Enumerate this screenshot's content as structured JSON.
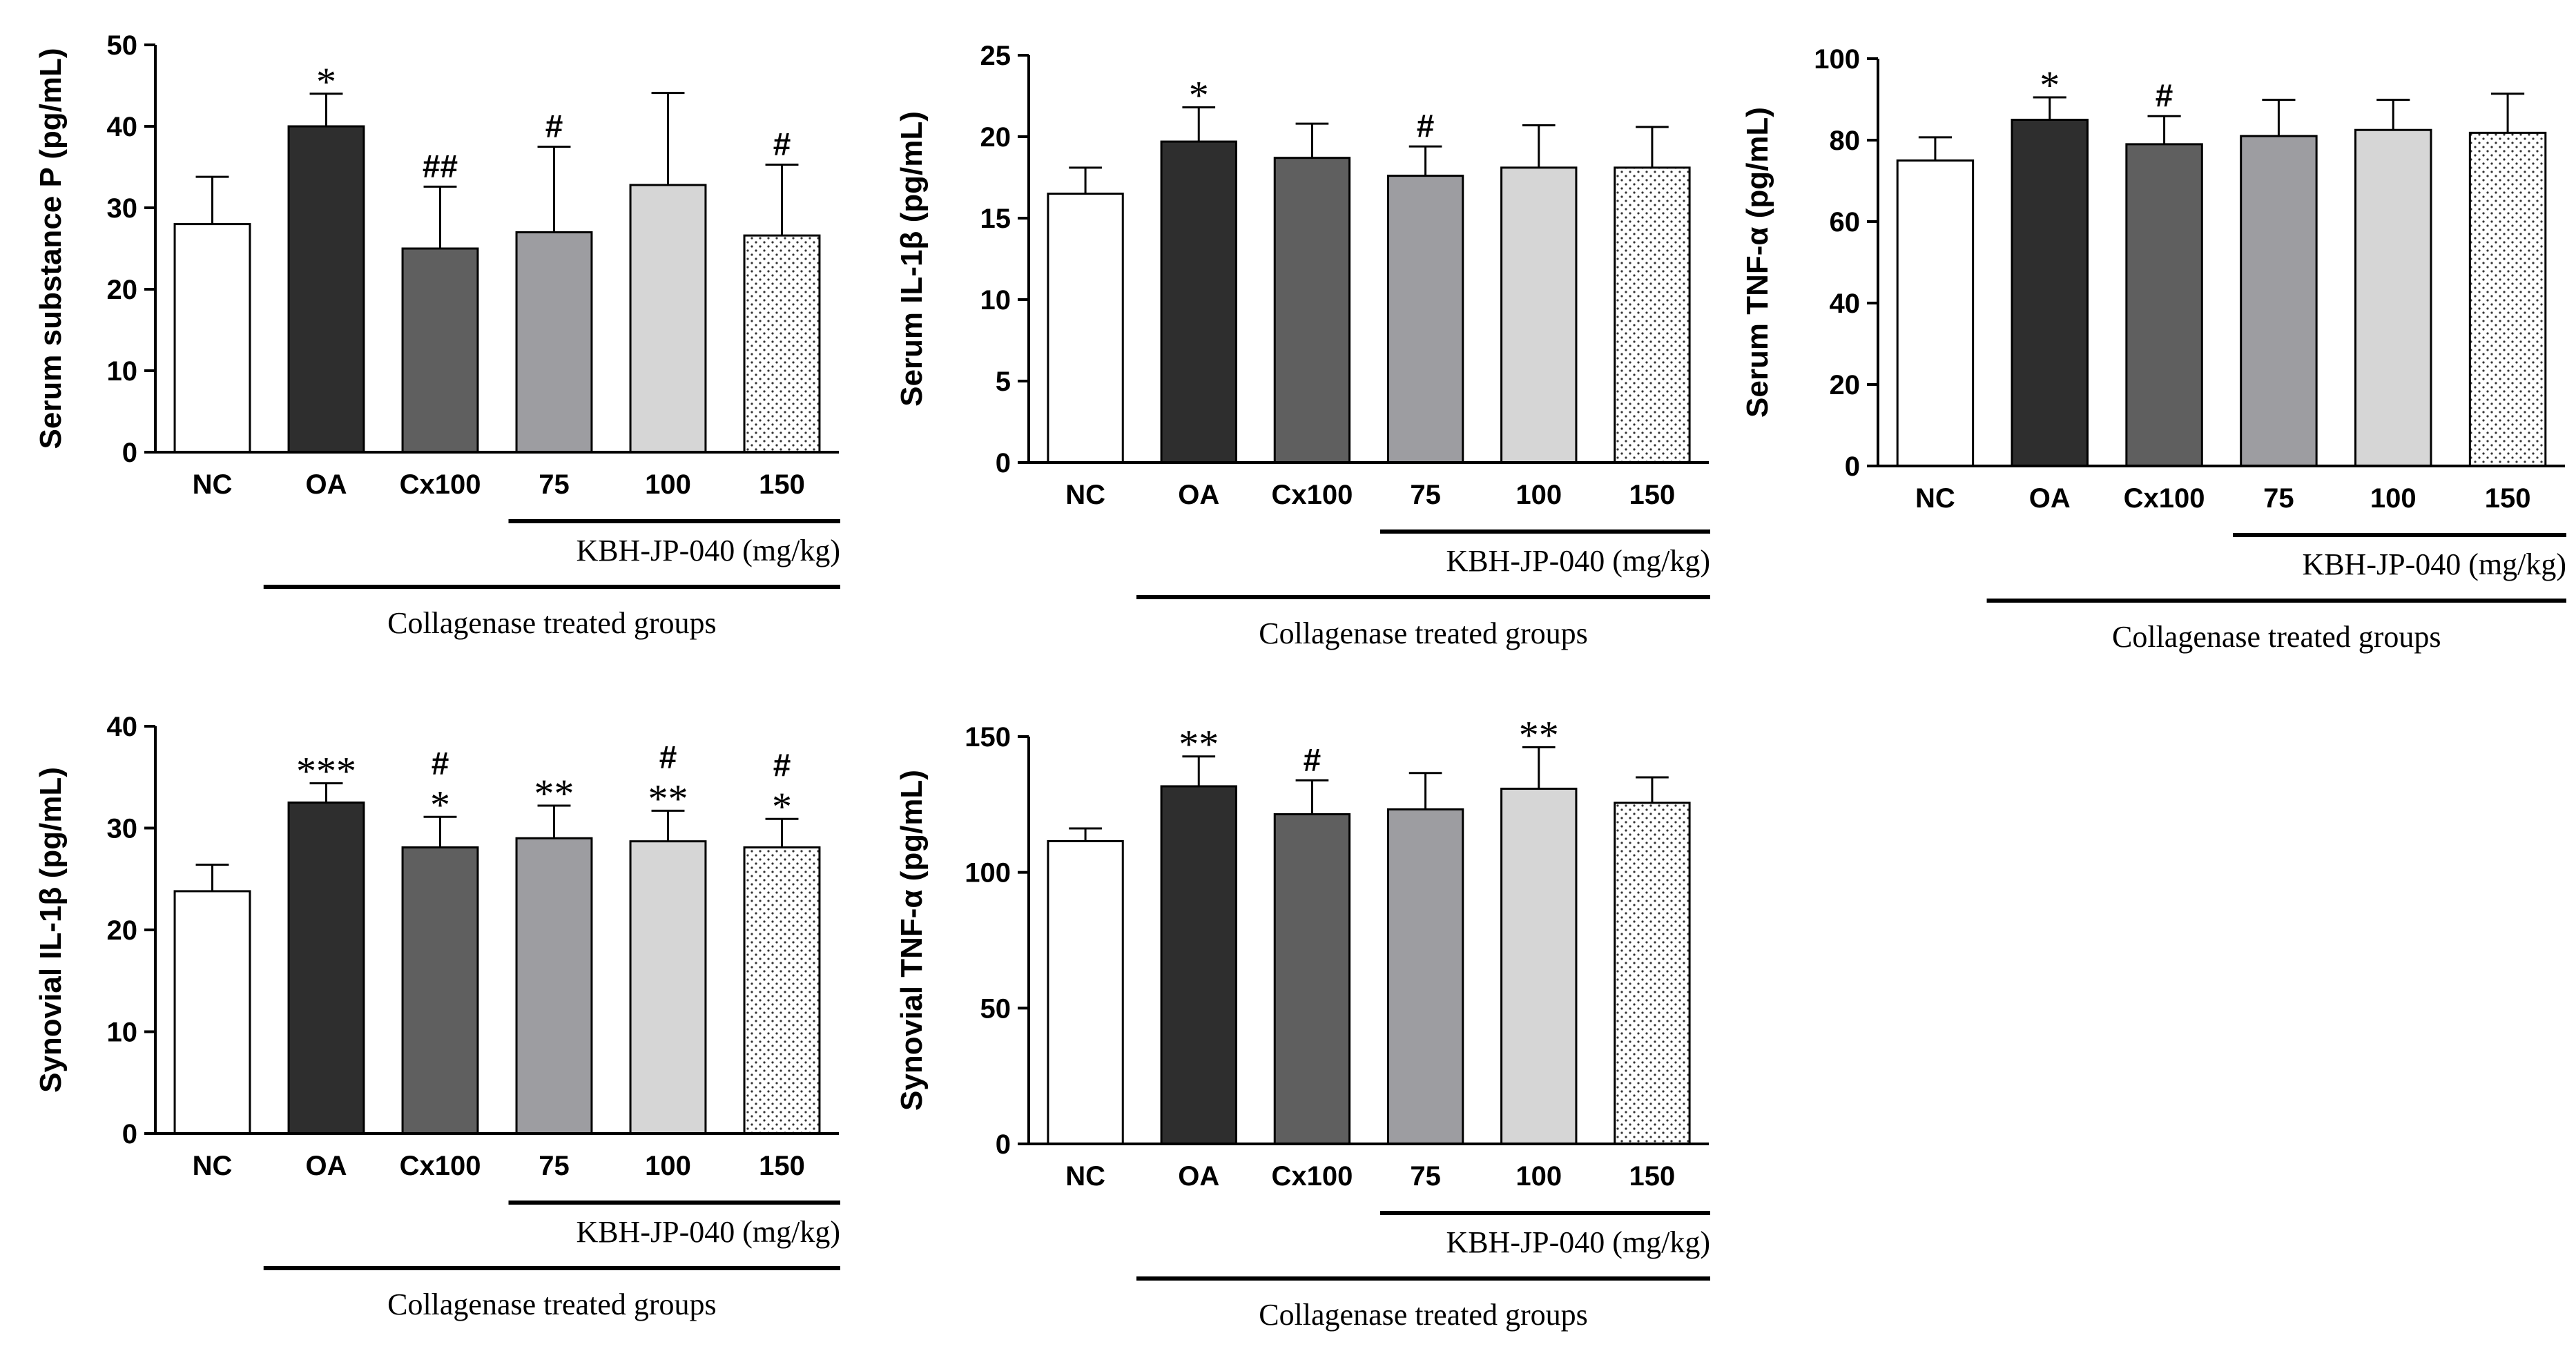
{
  "figure": {
    "categories": [
      "NC",
      "OA",
      "Cx100",
      "75",
      "100",
      "150"
    ],
    "bar_fills": [
      "#ffffff",
      "#2e2e2e",
      "#5f5f5f",
      "#9d9da1",
      "#d6d6d6",
      "dots"
    ],
    "dose_label": "KBH-JP-040 (mg/kg)",
    "group_label": "Collagenase treated groups"
  },
  "chart_data": [
    {
      "type": "bar",
      "ylabel": "Serum substance P  (pg/mL)",
      "ylim": [
        0,
        50
      ],
      "yticks": [
        0,
        10,
        20,
        30,
        40,
        50
      ],
      "categories": [
        "NC",
        "OA",
        "Cx100",
        "75",
        "100",
        "150"
      ],
      "values": [
        28,
        40,
        25,
        27,
        32.8,
        26.6
      ],
      "errors": [
        5.8,
        4,
        7.6,
        10.5,
        11.3,
        8.7
      ],
      "annotations": [
        "",
        "*",
        "##",
        "#",
        "",
        "#"
      ]
    },
    {
      "type": "bar",
      "ylabel": "Serum IL-1β  (pg/mL)",
      "ylim": [
        0,
        25
      ],
      "yticks": [
        0,
        5,
        10,
        15,
        20,
        25
      ],
      "categories": [
        "NC",
        "OA",
        "Cx100",
        "75",
        "100",
        "150"
      ],
      "values": [
        16.5,
        19.7,
        18.7,
        17.6,
        18.1,
        18.1
      ],
      "errors": [
        1.6,
        2.1,
        2.1,
        1.8,
        2.6,
        2.5
      ],
      "annotations": [
        "",
        "*",
        "",
        "#",
        "",
        ""
      ]
    },
    {
      "type": "bar",
      "ylabel": "Serum TNF-α  (pg/mL)",
      "ylim": [
        0,
        100
      ],
      "yticks": [
        0,
        20,
        40,
        60,
        80,
        100
      ],
      "categories": [
        "NC",
        "OA",
        "Cx100",
        "75",
        "100",
        "150"
      ],
      "values": [
        75,
        85,
        79,
        81,
        82.5,
        81.8
      ],
      "errors": [
        5.7,
        5.5,
        6.9,
        8.9,
        7.4,
        9.6
      ],
      "annotations": [
        "",
        "*",
        "#",
        "",
        "",
        ""
      ]
    },
    {
      "type": "bar",
      "ylabel": "Synovial IL-1β  (pg/mL)",
      "ylim": [
        0,
        40
      ],
      "yticks": [
        0,
        10,
        20,
        30,
        40
      ],
      "categories": [
        "NC",
        "OA",
        "Cx100",
        "75",
        "100",
        "150"
      ],
      "values": [
        23.8,
        32.5,
        28.1,
        29,
        28.7,
        28.1
      ],
      "errors": [
        2.6,
        1.9,
        3.0,
        3.2,
        3.0,
        2.8
      ],
      "annotations": [
        "",
        "***",
        "#\n*",
        "**",
        "#\n**",
        "#\n*"
      ]
    },
    {
      "type": "bar",
      "ylabel": "Synovial TNF-α  (pg/mL)",
      "ylim": [
        0,
        150
      ],
      "yticks": [
        0,
        50,
        100,
        150
      ],
      "categories": [
        "NC",
        "OA",
        "Cx100",
        "75",
        "100",
        "150"
      ],
      "values": [
        111.5,
        131.7,
        121.4,
        123.2,
        130.8,
        125.6
      ],
      "errors": [
        4.7,
        11,
        12.5,
        13.4,
        15.3,
        9.4
      ],
      "annotations": [
        "",
        "**",
        "#",
        "",
        "**",
        ""
      ]
    }
  ]
}
